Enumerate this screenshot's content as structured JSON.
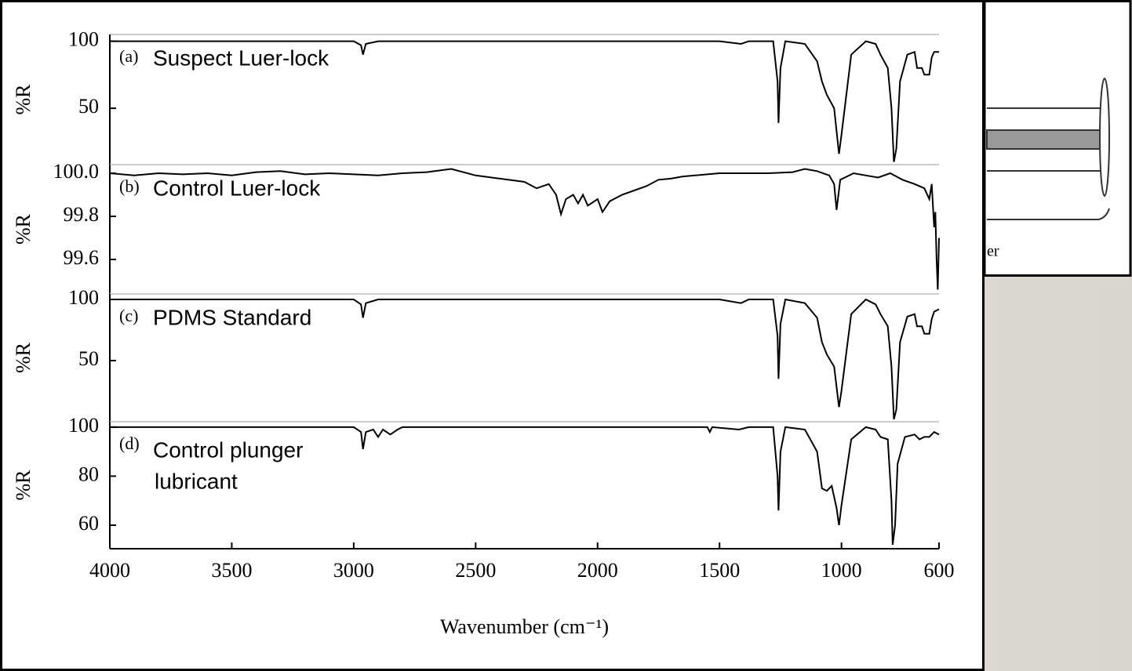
{
  "chart_data": [
    {
      "type": "line",
      "label": "(a)",
      "title": "Suspect Luer-lock",
      "ylabel": "%R",
      "x": [
        4000,
        3500,
        3000,
        2970,
        2962,
        2950,
        2900,
        2500,
        2000,
        1500,
        1412,
        1380,
        1280,
        1262,
        1258,
        1250,
        1230,
        1150,
        1100,
        1080,
        1060,
        1030,
        1010,
        1000,
        960,
        900,
        860,
        840,
        810,
        795,
        785,
        775,
        760,
        730,
        700,
        690,
        670,
        660,
        640,
        630,
        620,
        600
      ],
      "series": [
        {
          "color": "#000000",
          "values": [
            100,
            100,
            100,
            97,
            90,
            98,
            100,
            100,
            100,
            100,
            98,
            100,
            100,
            70,
            39,
            80,
            100,
            98,
            85,
            70,
            60,
            50,
            16,
            30,
            90,
            100,
            98,
            90,
            80,
            50,
            10,
            20,
            70,
            90,
            92,
            80,
            80,
            75,
            75,
            88,
            92,
            92
          ]
        }
      ],
      "xlim": [
        4000,
        600
      ],
      "ylim": [
        8,
        105
      ],
      "yticks": [
        50,
        100
      ]
    },
    {
      "type": "line",
      "label": "(b)",
      "title": "Control Luer-lock",
      "ylabel": "%R",
      "x": [
        4000,
        3900,
        3800,
        3700,
        3600,
        3500,
        3400,
        3300,
        3200,
        3100,
        3000,
        2900,
        2800,
        2700,
        2600,
        2500,
        2400,
        2300,
        2250,
        2200,
        2170,
        2150,
        2130,
        2100,
        2080,
        2060,
        2040,
        2000,
        1980,
        1950,
        1900,
        1850,
        1800,
        1750,
        1700,
        1650,
        1600,
        1500,
        1400,
        1300,
        1200,
        1150,
        1100,
        1050,
        1030,
        1020,
        1005,
        950,
        900,
        850,
        800,
        750,
        700,
        660,
        640,
        630,
        620,
        615,
        610,
        605,
        600
      ],
      "series": [
        {
          "color": "#000000",
          "values": [
            100.0,
            99.99,
            100.0,
            99.995,
            100.0,
            99.99,
            100.005,
            100.01,
            99.995,
            100.0,
            99.995,
            99.99,
            100.0,
            100.005,
            100.02,
            99.99,
            99.975,
            99.96,
            99.93,
            99.95,
            99.9,
            99.81,
            99.88,
            99.9,
            99.86,
            99.9,
            99.85,
            99.88,
            99.82,
            99.87,
            99.9,
            99.92,
            99.94,
            99.97,
            99.975,
            99.985,
            99.99,
            100.0,
            100.0,
            100.0,
            100.005,
            100.02,
            100.01,
            99.99,
            99.95,
            99.83,
            99.97,
            100.0,
            99.99,
            99.98,
            100.0,
            99.97,
            99.95,
            99.93,
            99.88,
            99.95,
            99.75,
            99.82,
            99.6,
            99.46,
            99.7
          ]
        }
      ],
      "xlim": [
        4000,
        600
      ],
      "ylim": [
        99.44,
        100.04
      ],
      "yticks": [
        {
          "value": 100,
          "label": "100.0"
        },
        99.8,
        99.6
      ]
    },
    {
      "type": "line",
      "label": "(c)",
      "title": "PDMS Standard",
      "ylabel": "%R",
      "x": [
        4000,
        3000,
        2970,
        2962,
        2950,
        2900,
        2000,
        1500,
        1412,
        1380,
        1280,
        1262,
        1258,
        1250,
        1230,
        1150,
        1100,
        1080,
        1060,
        1030,
        1010,
        1000,
        960,
        900,
        860,
        840,
        810,
        795,
        785,
        775,
        760,
        730,
        700,
        690,
        670,
        660,
        640,
        630,
        620,
        600
      ],
      "series": [
        {
          "color": "#000000",
          "values": [
            100,
            100,
            96,
            85,
            97,
            100,
            100,
            100,
            97,
            100,
            100,
            70,
            35,
            80,
            100,
            97,
            85,
            65,
            55,
            45,
            12,
            25,
            88,
            100,
            96,
            88,
            78,
            45,
            2,
            10,
            65,
            86,
            88,
            78,
            78,
            72,
            72,
            84,
            90,
            92
          ]
        }
      ],
      "xlim": [
        4000,
        600
      ],
      "ylim": [
        0,
        104.5
      ],
      "yticks": [
        50,
        100
      ]
    },
    {
      "type": "line",
      "label": "(d)",
      "title_lines": [
        "Control plunger",
        "lubricant"
      ],
      "ylabel": "%R",
      "xlabel": "Wavenumber (cm⁻¹)",
      "x": [
        4000,
        3000,
        2970,
        2962,
        2950,
        2920,
        2900,
        2880,
        2850,
        2820,
        2800,
        2000,
        1550,
        1540,
        1530,
        1420,
        1380,
        1280,
        1262,
        1258,
        1250,
        1230,
        1150,
        1100,
        1080,
        1060,
        1040,
        1020,
        1010,
        1000,
        960,
        900,
        860,
        840,
        810,
        795,
        790,
        780,
        770,
        740,
        700,
        680,
        660,
        640,
        620,
        600
      ],
      "series": [
        {
          "color": "#000000",
          "values": [
            100,
            100,
            98,
            91,
            98,
            99,
            96,
            99,
            97,
            99,
            100,
            100,
            100,
            98,
            100,
            99,
            100,
            100,
            80,
            66,
            90,
            100,
            99,
            90,
            75,
            74,
            76,
            67,
            60,
            68,
            95,
            100,
            99,
            96,
            95,
            70,
            52,
            60,
            85,
            96,
            97,
            95,
            96,
            96,
            98,
            97
          ]
        }
      ],
      "xlim": [
        4000,
        600
      ],
      "ylim": [
        50.4,
        102.2
      ],
      "yticks": [
        60,
        80,
        100
      ],
      "xticks": [
        4000,
        3500,
        3000,
        2500,
        2000,
        1500,
        1000,
        600
      ]
    }
  ],
  "inset": {
    "label": "er"
  }
}
